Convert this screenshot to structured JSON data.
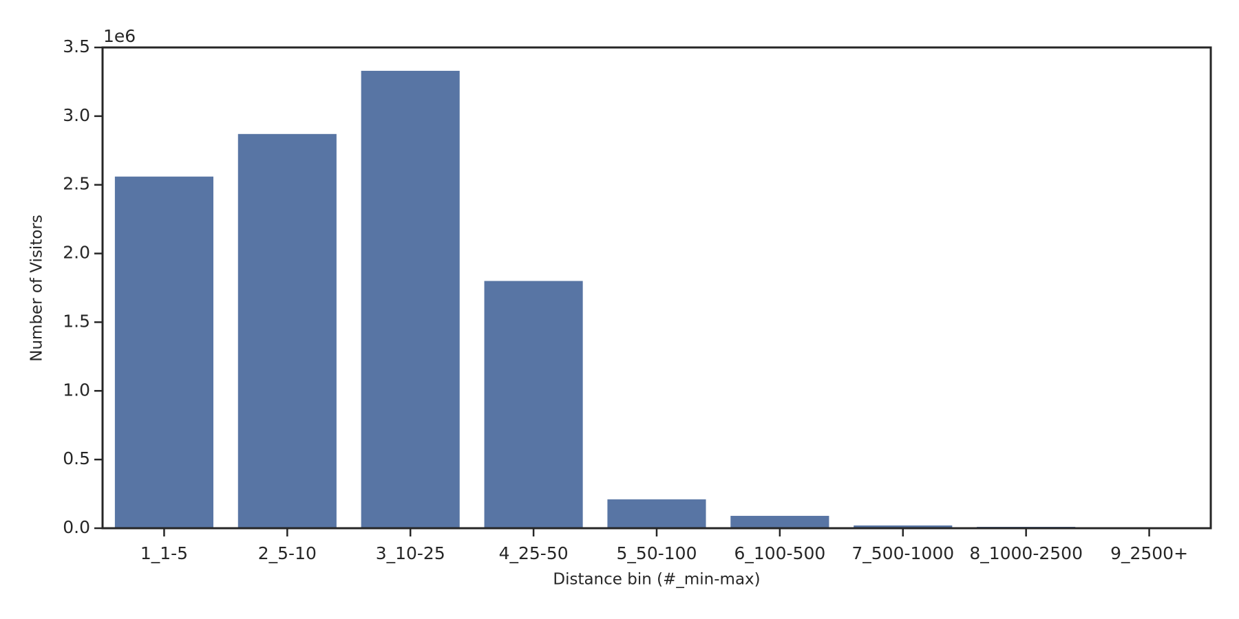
{
  "chart_data": {
    "type": "bar",
    "x_label": "Distance bin (#_min-max)",
    "y_label": "Number of Visitors",
    "y_offset_label": "1e6",
    "categories": [
      "1_1-5",
      "2_5-10",
      "3_10-25",
      "4_25-50",
      "5_50-100",
      "6_100-500",
      "7_500-1000",
      "8_1000-2500",
      "9_2500+"
    ],
    "values": [
      2.56,
      2.87,
      3.33,
      1.8,
      0.21,
      0.09,
      0.02,
      0.01,
      0.004
    ],
    "color": "#5875a4",
    "ylim": [
      0,
      3.5
    ],
    "yticks": [
      {
        "value": 0,
        "label": "0.0"
      },
      0.5,
      {
        "value": 1,
        "label": "1.0"
      },
      1.5,
      {
        "value": 2,
        "label": "2.0"
      },
      2.5,
      {
        "value": 3,
        "label": "3.0"
      },
      3.5
    ],
    "grid": false
  }
}
